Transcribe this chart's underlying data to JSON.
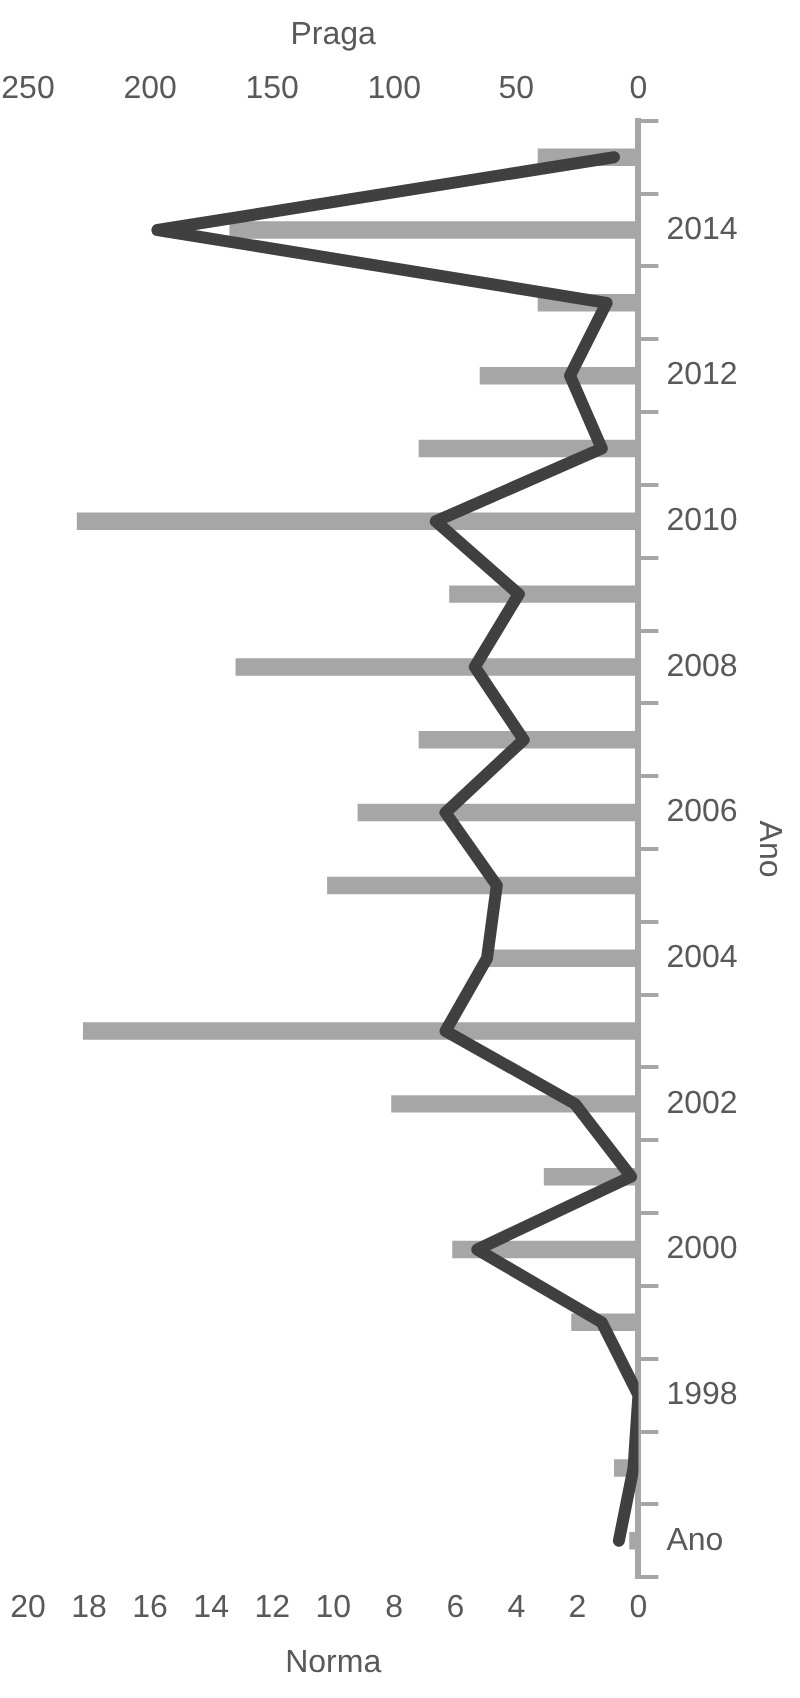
{
  "chart_data": {
    "type": "bar",
    "orientation": "horizontal",
    "xlabel": "Norma",
    "x2label": "Praga",
    "ylabel": "Ano",
    "categories": [
      null,
      "2014",
      null,
      "2012",
      null,
      "2010",
      null,
      "2008",
      null,
      "2006",
      null,
      "2004",
      null,
      "2002",
      null,
      "2000",
      null,
      "1998",
      null,
      "Ano"
    ],
    "series": [
      {
        "color": "#a6a6a6",
        "values": [
          3.3,
          13.4,
          3.3,
          5.2,
          7.2,
          18.4,
          6.2,
          13.2,
          7.2,
          9.2,
          10.2,
          5,
          18.2,
          8.1,
          3.1,
          6.1,
          2.2,
          0,
          0.8,
          0.3
        ]
      },
      {
        "type": "line",
        "axis": "x2",
        "color": "#404040",
        "values": [
          10,
          197,
          13,
          28,
          15,
          83,
          49,
          67,
          47,
          79,
          58,
          62,
          79,
          26,
          3,
          66,
          15,
          0,
          2,
          8
        ]
      }
    ],
    "xlim": [
      20,
      0
    ],
    "xticks": [
      0,
      2,
      4,
      6,
      8,
      10,
      12,
      14,
      16,
      18,
      20
    ],
    "x2lim": [
      250,
      0
    ],
    "x2ticks": [
      0,
      50,
      100,
      150,
      200,
      250
    ],
    "grid": false,
    "legend": false,
    "marker": "none",
    "line_style": "solid"
  }
}
